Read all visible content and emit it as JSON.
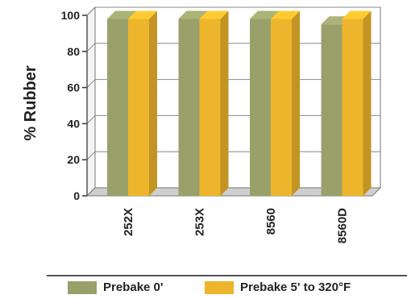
{
  "chart_data": {
    "type": "bar",
    "categories": [
      "252X",
      "253X",
      "8560",
      "8560D"
    ],
    "series": [
      {
        "name": "Prebake 0'",
        "values": [
          98,
          98,
          98,
          95
        ],
        "color": "#9aa06a"
      },
      {
        "name": "Prebake 5' to 320°F",
        "values": [
          98,
          98,
          98,
          98
        ],
        "color": "#ecb52b"
      }
    ],
    "xlabel": "",
    "ylabel": "% Rubber",
    "ylim": [
      0,
      100
    ],
    "yticks": [
      0,
      20,
      40,
      60,
      80,
      100
    ],
    "grid": true,
    "legend_position": "bottom"
  }
}
